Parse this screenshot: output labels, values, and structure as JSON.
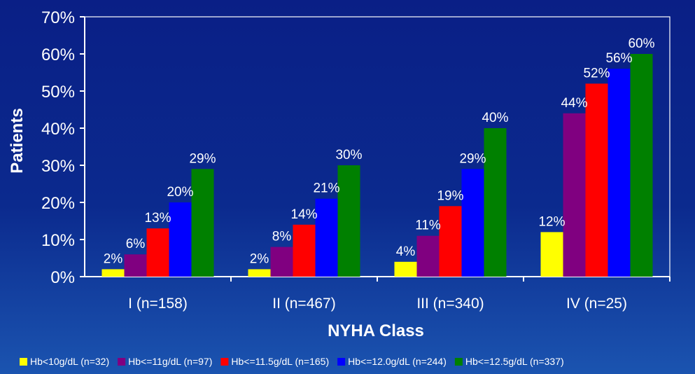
{
  "chart_data": {
    "type": "bar",
    "title": "",
    "xlabel": "NYHA Class",
    "ylabel": "Patients",
    "ylim": [
      0,
      70
    ],
    "yticks": [
      "0%",
      "10%",
      "20%",
      "30%",
      "40%",
      "50%",
      "60%",
      "70%"
    ],
    "categories": [
      "I (n=158)",
      "II (n=467)",
      "III (n=340)",
      "IV (n=25)"
    ],
    "series": [
      {
        "name": "Hb<10g/dL (n=32)",
        "color": "#ffff00",
        "values": [
          2,
          2,
          4,
          12
        ],
        "labels": [
          "2%",
          "2%",
          "4%",
          "12%"
        ]
      },
      {
        "name": "Hb<=11g/dL (n=97)",
        "color": "#800080",
        "values": [
          6,
          8,
          11,
          44
        ],
        "labels": [
          "6%",
          "8%",
          "11%",
          "44%"
        ]
      },
      {
        "name": "Hb<=11.5g/dL (n=165)",
        "color": "#ff0000",
        "values": [
          13,
          14,
          19,
          52
        ],
        "labels": [
          "13%",
          "14%",
          "19%",
          "52%"
        ]
      },
      {
        "name": "Hb<=12.0g/dL (n=244)",
        "color": "#0000ff",
        "values": [
          20,
          21,
          29,
          56
        ],
        "labels": [
          "20%",
          "21%",
          "29%",
          "56%"
        ]
      },
      {
        "name": "Hb<=12.5g/dL (n=337)",
        "color": "#008000",
        "values": [
          29,
          30,
          40,
          60
        ],
        "labels": [
          "29%",
          "30%",
          "40%",
          "60%"
        ]
      }
    ],
    "legend_position": "bottom",
    "grid": false
  }
}
